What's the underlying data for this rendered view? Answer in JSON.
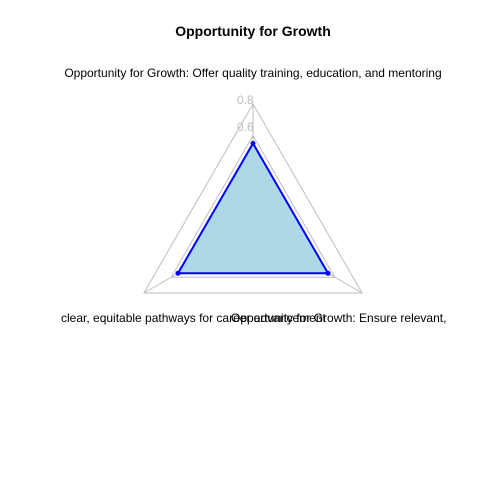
{
  "chart_data": {
    "type": "radar",
    "title": "Opportunity for Growth",
    "axes": [
      "Opportunity for Growth: Offer quality training, education, and mentoring",
      "Opportunity for Growth: Ensure relevant,",
      "clear, equitable pathways for career advancement"
    ],
    "ticks": [
      "0.6",
      "0.8"
    ],
    "range": [
      0,
      0.8
    ],
    "series": [
      {
        "values": [
          0.55,
          0.55,
          0.55
        ]
      }
    ],
    "colors": {
      "fill": "#add8e6",
      "line": "#0000ff",
      "grid": "#bebebe"
    }
  }
}
